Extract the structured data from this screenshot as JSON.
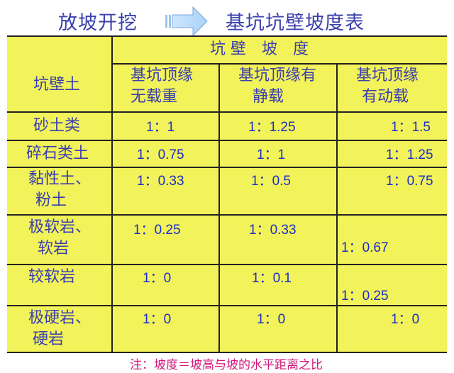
{
  "title_left": "放坡开挖",
  "title_right": "基坑坑壁坡度表",
  "arrow_icon": "right-arrow",
  "colors": {
    "table_bg": "#f2f25a",
    "text": "#3a3fae",
    "values": "#1a2fc4",
    "note": "#d3187a"
  },
  "table": {
    "row_header": "坑壁土",
    "group_header": "坑 壁　坡　度",
    "columns": [
      [
        "基坑顶缘",
        "无载重"
      ],
      [
        "基坑顶缘有",
        "静载"
      ],
      [
        "基坑顶缘",
        "有动载"
      ]
    ],
    "rows": [
      {
        "soil": [
          "砂土类"
        ],
        "values": [
          "1：1",
          "1：1.25",
          "1：1.5"
        ]
      },
      {
        "soil": [
          "碎石类土"
        ],
        "values": [
          "1：0.75",
          "1：1",
          "1：1.25"
        ]
      },
      {
        "soil": [
          "黏性土、",
          "粉土"
        ],
        "values": [
          "1：0.33",
          "1：0.5",
          "1：0.75"
        ]
      },
      {
        "soil": [
          "极软岩、",
          "软岩"
        ],
        "values": [
          "1：0.25",
          "1：0.33",
          "1：0.67"
        ]
      },
      {
        "soil": [
          "较软岩"
        ],
        "values": [
          "1：0",
          "1：0.1",
          "1：0.25"
        ]
      },
      {
        "soil": [
          "极硬岩、",
          "硬岩"
        ],
        "values": [
          "1：0",
          "1：0",
          "1：0"
        ]
      }
    ]
  },
  "note": "注：坡度＝坡高与坡的水平距离之比"
}
